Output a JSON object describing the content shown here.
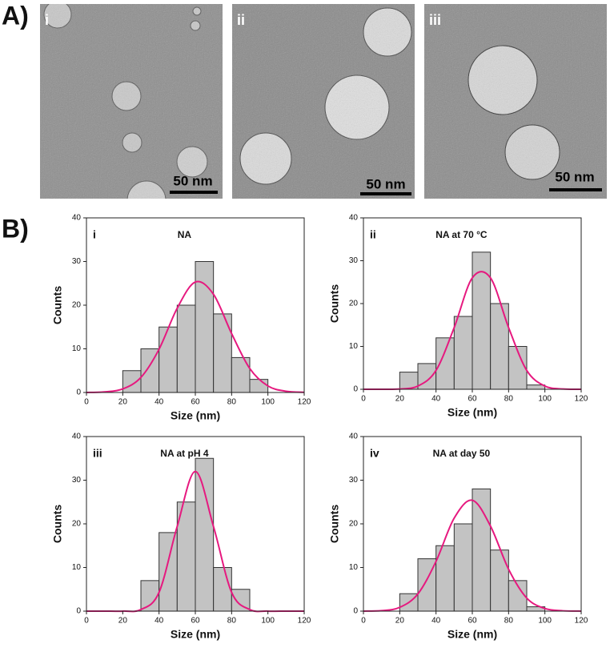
{
  "figure": {
    "panel_a": "A)",
    "panel_b": "B)",
    "images": [
      {
        "label": "i",
        "scale_bar": "50 nm"
      },
      {
        "label": "ii",
        "scale_bar": "50 nm"
      },
      {
        "label": "iii",
        "scale_bar": "50 nm"
      }
    ]
  },
  "chart_data": [
    {
      "type": "histogram",
      "label": "i",
      "title": "NA",
      "x_label": "Size (nm)",
      "y_label": "Counts",
      "bins": [
        20,
        30,
        40,
        50,
        60,
        70,
        80,
        90,
        100
      ],
      "counts": [
        5,
        10,
        15,
        20,
        30,
        18,
        8,
        3
      ],
      "bar_color": "#c3c3c3",
      "fit": {
        "color": "#e6197f",
        "x": [
          0,
          10,
          20,
          30,
          40,
          50,
          60,
          70,
          80,
          90,
          100,
          110,
          120
        ],
        "y": [
          0.01,
          0.13,
          0.81,
          3.45,
          9.9,
          19.3,
          25.3,
          22.5,
          13.5,
          5.5,
          1.5,
          0.28,
          0.04
        ]
      },
      "xlim": [
        0,
        120
      ],
      "ylim": [
        0,
        40
      ],
      "xticks": [
        0,
        20,
        40,
        60,
        80,
        100,
        120
      ],
      "yticks": [
        0,
        10,
        20,
        30,
        40
      ]
    },
    {
      "type": "histogram",
      "label": "ii",
      "title": "NA at 70 °C",
      "x_label": "Size (nm)",
      "y_label": "Counts",
      "bins": [
        20,
        30,
        40,
        50,
        60,
        70,
        80,
        90,
        100
      ],
      "counts": [
        4,
        6,
        12,
        17,
        32,
        20,
        10,
        1
      ],
      "bar_color": "#c3c3c3",
      "fit": {
        "color": "#e6197f",
        "x": [
          0,
          10,
          20,
          30,
          40,
          50,
          60,
          70,
          80,
          90,
          100,
          110,
          120
        ],
        "y": [
          0,
          0,
          0.07,
          0.75,
          4.4,
          14.4,
          26,
          26,
          14.4,
          4.4,
          0.75,
          0.07,
          0
        ]
      },
      "xlim": [
        0,
        120
      ],
      "ylim": [
        0,
        40
      ],
      "xticks": [
        0,
        20,
        40,
        60,
        80,
        100,
        120
      ],
      "yticks": [
        0,
        10,
        20,
        30,
        40
      ]
    },
    {
      "type": "histogram",
      "label": "iii",
      "title": "NA at pH 4",
      "x_label": "Size (nm)",
      "y_label": "Counts",
      "bins": [
        30,
        40,
        50,
        60,
        70,
        80,
        90
      ],
      "counts": [
        7,
        18,
        25,
        35,
        10,
        5
      ],
      "bar_color": "#c3c3c3",
      "fit": {
        "color": "#e6197f",
        "x": [
          0,
          10,
          20,
          30,
          40,
          50,
          60,
          70,
          80,
          90,
          100,
          110,
          120
        ],
        "y": [
          0,
          0,
          0.01,
          0.36,
          4.3,
          19.4,
          32,
          19.4,
          4.3,
          0.36,
          0.01,
          0,
          0
        ]
      },
      "xlim": [
        0,
        120
      ],
      "ylim": [
        0,
        40
      ],
      "xticks": [
        0,
        20,
        40,
        60,
        80,
        100,
        120
      ],
      "yticks": [
        0,
        10,
        20,
        30,
        40
      ]
    },
    {
      "type": "histogram",
      "label": "iv",
      "title": "NA at day 50",
      "x_label": "Size (nm)",
      "y_label": "Counts",
      "bins": [
        20,
        30,
        40,
        50,
        60,
        70,
        80,
        90,
        100
      ],
      "counts": [
        4,
        12,
        15,
        20,
        28,
        14,
        7,
        1
      ],
      "bar_color": "#c3c3c3",
      "fit": {
        "color": "#e6197f",
        "x": [
          0,
          10,
          20,
          30,
          40,
          50,
          60,
          70,
          80,
          90,
          100,
          110,
          120
        ],
        "y": [
          0.01,
          0.12,
          0.87,
          3.94,
          11.4,
          21.3,
          25.4,
          19.5,
          9.6,
          3,
          0.6,
          0.08,
          0.01
        ]
      },
      "xlim": [
        0,
        120
      ],
      "ylim": [
        0,
        40
      ],
      "xticks": [
        0,
        20,
        40,
        60,
        80,
        100,
        120
      ],
      "yticks": [
        0,
        10,
        20,
        30,
        40
      ]
    }
  ]
}
